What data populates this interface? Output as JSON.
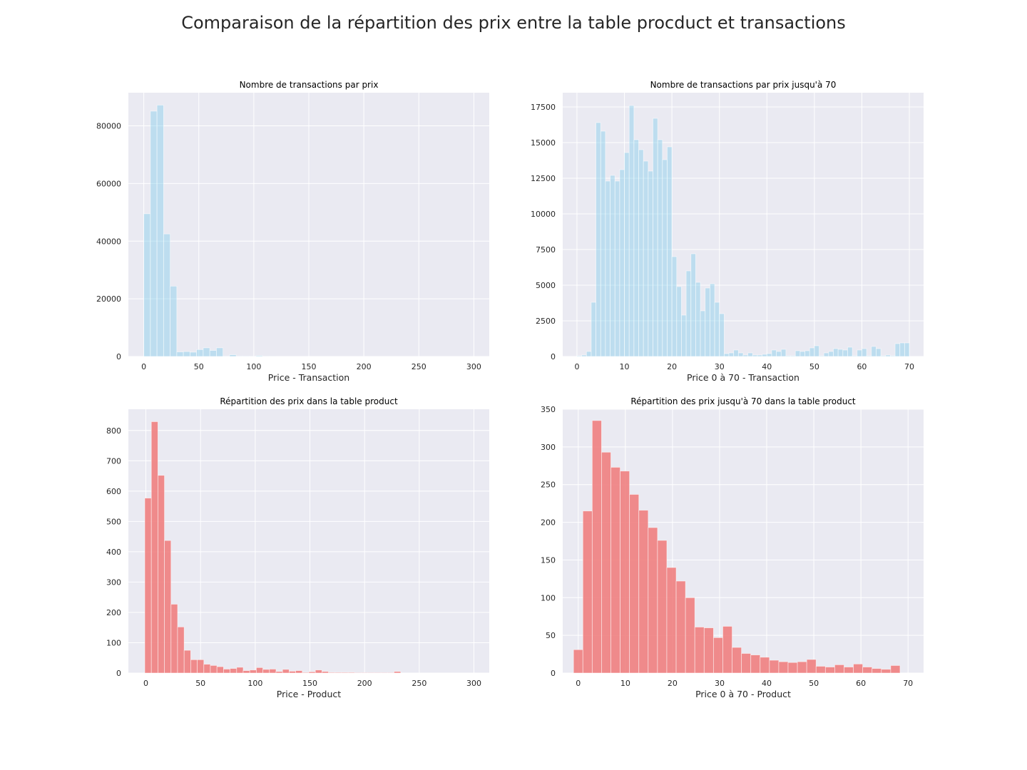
{
  "suptitle": "Comparaison de la répartition des prix entre la table procduct et transactions",
  "chart_data": [
    {
      "type": "bar",
      "title": "Nombre de transactions par prix",
      "xlabel": "Price - Transaction",
      "ylabel": "",
      "color": "#87CEEB",
      "opacity": 0.45,
      "xlim": [
        -14,
        314
      ],
      "ylim": [
        0,
        91500
      ],
      "xticks": [
        0,
        50,
        100,
        150,
        200,
        250,
        300
      ],
      "yticks": [
        0,
        20000,
        40000,
        60000,
        80000
      ],
      "bin_edges_start": 0,
      "bin_width": 6,
      "values": [
        49500,
        85100,
        87200,
        42500,
        24400,
        1600,
        1700,
        1500,
        2400,
        3000,
        2100,
        3000,
        100,
        600,
        100,
        100,
        50,
        300,
        50,
        50,
        0,
        0,
        0,
        0,
        0,
        0,
        0,
        0,
        0,
        0,
        0,
        0,
        0,
        0,
        0,
        0,
        0,
        0,
        0,
        0,
        0,
        0,
        0,
        0,
        0,
        0,
        0,
        0,
        0,
        0
      ]
    },
    {
      "type": "bar",
      "title": "Nombre de transactions par prix jusqu'à 70",
      "xlabel": "Price 0 à 70 - Transaction",
      "ylabel": "",
      "color": "#87CEEB",
      "opacity": 0.45,
      "xlim": [
        -3,
        73
      ],
      "ylim": [
        0,
        18500
      ],
      "xticks": [
        0,
        10,
        20,
        30,
        40,
        50,
        60,
        70
      ],
      "yticks": [
        0,
        2500,
        5000,
        7500,
        10000,
        12500,
        15000,
        17500
      ],
      "bin_edges_start": 0,
      "bin_width": 1,
      "values": [
        50,
        100,
        350,
        3800,
        16400,
        15800,
        12300,
        12700,
        12300,
        13100,
        14300,
        17600,
        15200,
        14500,
        13700,
        13000,
        16700,
        15200,
        13800,
        14700,
        7000,
        4900,
        2900,
        6000,
        7200,
        5200,
        3200,
        4800,
        5100,
        3800,
        3000,
        200,
        250,
        450,
        250,
        100,
        250,
        100,
        100,
        150,
        200,
        450,
        350,
        500,
        50,
        50,
        400,
        350,
        400,
        600,
        750,
        50,
        250,
        350,
        550,
        500,
        450,
        650,
        50,
        450,
        550,
        50,
        700,
        550,
        50,
        100,
        50,
        900,
        950,
        950
      ]
    },
    {
      "type": "bar",
      "title": "Répartition des prix dans la table product",
      "xlabel": "Price - Product",
      "ylabel": "",
      "color": "#F08080",
      "opacity": 0.9,
      "xlim": [
        -16,
        314
      ],
      "ylim": [
        0,
        870
      ],
      "xticks": [
        0,
        50,
        100,
        150,
        200,
        250,
        300
      ],
      "yticks": [
        0,
        100,
        200,
        300,
        400,
        500,
        600,
        700,
        800
      ],
      "bin_edges_start": -1,
      "bin_width": 6,
      "values": [
        577,
        829,
        652,
        437,
        227,
        152,
        75,
        44,
        44,
        29,
        25,
        21,
        13,
        15,
        19,
        8,
        10,
        18,
        12,
        13,
        5,
        12,
        6,
        8,
        2,
        4,
        10,
        5,
        2,
        2,
        2,
        2,
        1,
        1,
        1,
        1,
        1,
        1,
        5,
        0,
        0,
        0,
        0,
        0,
        0,
        0,
        0,
        0,
        0,
        0
      ]
    },
    {
      "type": "bar",
      "title": "Répartition des prix jusqu'à 70 dans la table product",
      "xlabel": "Price 0 à 70 - Product",
      "ylabel": "",
      "color": "#F08080",
      "opacity": 0.9,
      "xlim": [
        -3.3,
        73.3
      ],
      "ylim": [
        0,
        350
      ],
      "xticks": [
        0,
        10,
        20,
        30,
        40,
        50,
        60,
        70
      ],
      "yticks": [
        0,
        50,
        100,
        150,
        200,
        250,
        300,
        350
      ],
      "bin_edges_start": -1,
      "bin_width": 1.98,
      "values": [
        31,
        215,
        335,
        293,
        273,
        268,
        237,
        216,
        193,
        176,
        140,
        122,
        100,
        61,
        60,
        47,
        62,
        34,
        26,
        24,
        21,
        17,
        15,
        14,
        15,
        18,
        9,
        8,
        11,
        8,
        12,
        8,
        6,
        5,
        10
      ]
    }
  ]
}
